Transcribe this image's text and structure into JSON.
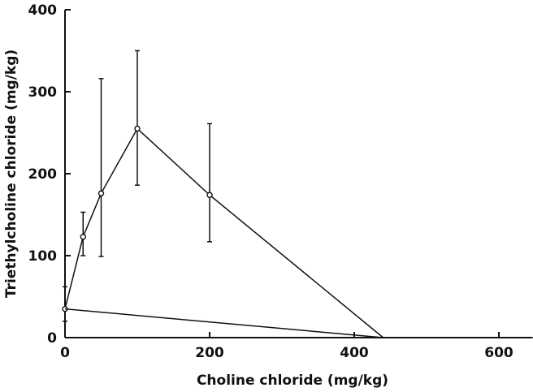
{
  "chart_data": {
    "type": "line",
    "title": "",
    "xlabel": "Choline chloride (mg/kg)",
    "ylabel": "Triethylcholine chloride (mg/kg)",
    "xlim": [
      0,
      700
    ],
    "ylim": [
      0,
      400
    ],
    "xticks": [
      0,
      200,
      400,
      600
    ],
    "yticks": [
      0,
      100,
      200,
      300,
      400
    ],
    "grid": false,
    "legend": "none",
    "series": [
      {
        "points": [
          {
            "x": 0,
            "y": 35,
            "err_low": 20,
            "err_high": 62
          },
          {
            "x": 25,
            "y": 123,
            "err_low": 100,
            "err_high": 153
          },
          {
            "x": 50,
            "y": 176,
            "err_low": 99,
            "err_high": 316
          },
          {
            "x": 100,
            "y": 255,
            "err_low": 186,
            "err_high": 350
          },
          {
            "x": 200,
            "y": 174,
            "err_low": 117,
            "err_high": 261
          },
          {
            "x": 440,
            "y": 0
          }
        ],
        "markers": true
      },
      {
        "points": [
          {
            "x": 0,
            "y": 35
          },
          {
            "x": 440,
            "y": 0
          }
        ],
        "markers": false
      },
      {
        "points": [
          {
            "x": 440,
            "y": 0
          },
          {
            "x": 690,
            "y": 0
          }
        ],
        "markers": false
      }
    ],
    "colors": {
      "line": "#111111",
      "marker_fill": "#ffffff"
    }
  }
}
